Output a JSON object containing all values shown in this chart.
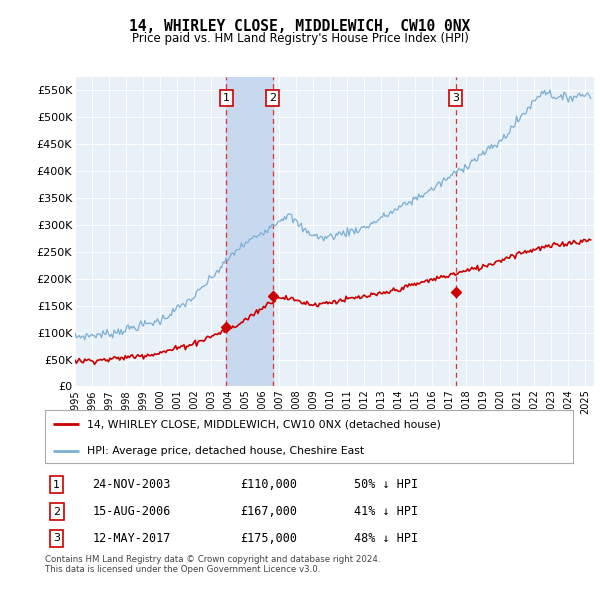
{
  "title": "14, WHIRLEY CLOSE, MIDDLEWICH, CW10 0NX",
  "subtitle": "Price paid vs. HM Land Registry's House Price Index (HPI)",
  "ylabel_ticks": [
    "£0",
    "£50K",
    "£100K",
    "£150K",
    "£200K",
    "£250K",
    "£300K",
    "£350K",
    "£400K",
    "£450K",
    "£500K",
    "£550K"
  ],
  "ytick_values": [
    0,
    50000,
    100000,
    150000,
    200000,
    250000,
    300000,
    350000,
    400000,
    450000,
    500000,
    550000
  ],
  "ylim": [
    0,
    575000
  ],
  "xlim_start": 1995.0,
  "xlim_end": 2025.5,
  "sale_dates": [
    2003.9,
    2006.62,
    2017.37
  ],
  "sale_prices": [
    110000,
    167000,
    175000
  ],
  "sale_labels": [
    "1",
    "2",
    "3"
  ],
  "sale_date_strs": [
    "24-NOV-2003",
    "15-AUG-2006",
    "12-MAY-2017"
  ],
  "sale_price_strs": [
    "£110,000",
    "£167,000",
    "£175,000"
  ],
  "sale_hpi_strs": [
    "50% ↓ HPI",
    "41% ↓ HPI",
    "48% ↓ HPI"
  ],
  "hpi_color": "#7bafd4",
  "price_color": "#cc0000",
  "background_color": "#e8f0f8",
  "highlight_color": "#c8d8ee",
  "legend_label_price": "14, WHIRLEY CLOSE, MIDDLEWICH, CW10 0NX (detached house)",
  "legend_label_hpi": "HPI: Average price, detached house, Cheshire East",
  "footnote": "Contains HM Land Registry data © Crown copyright and database right 2024.\nThis data is licensed under the Open Government Licence v3.0."
}
